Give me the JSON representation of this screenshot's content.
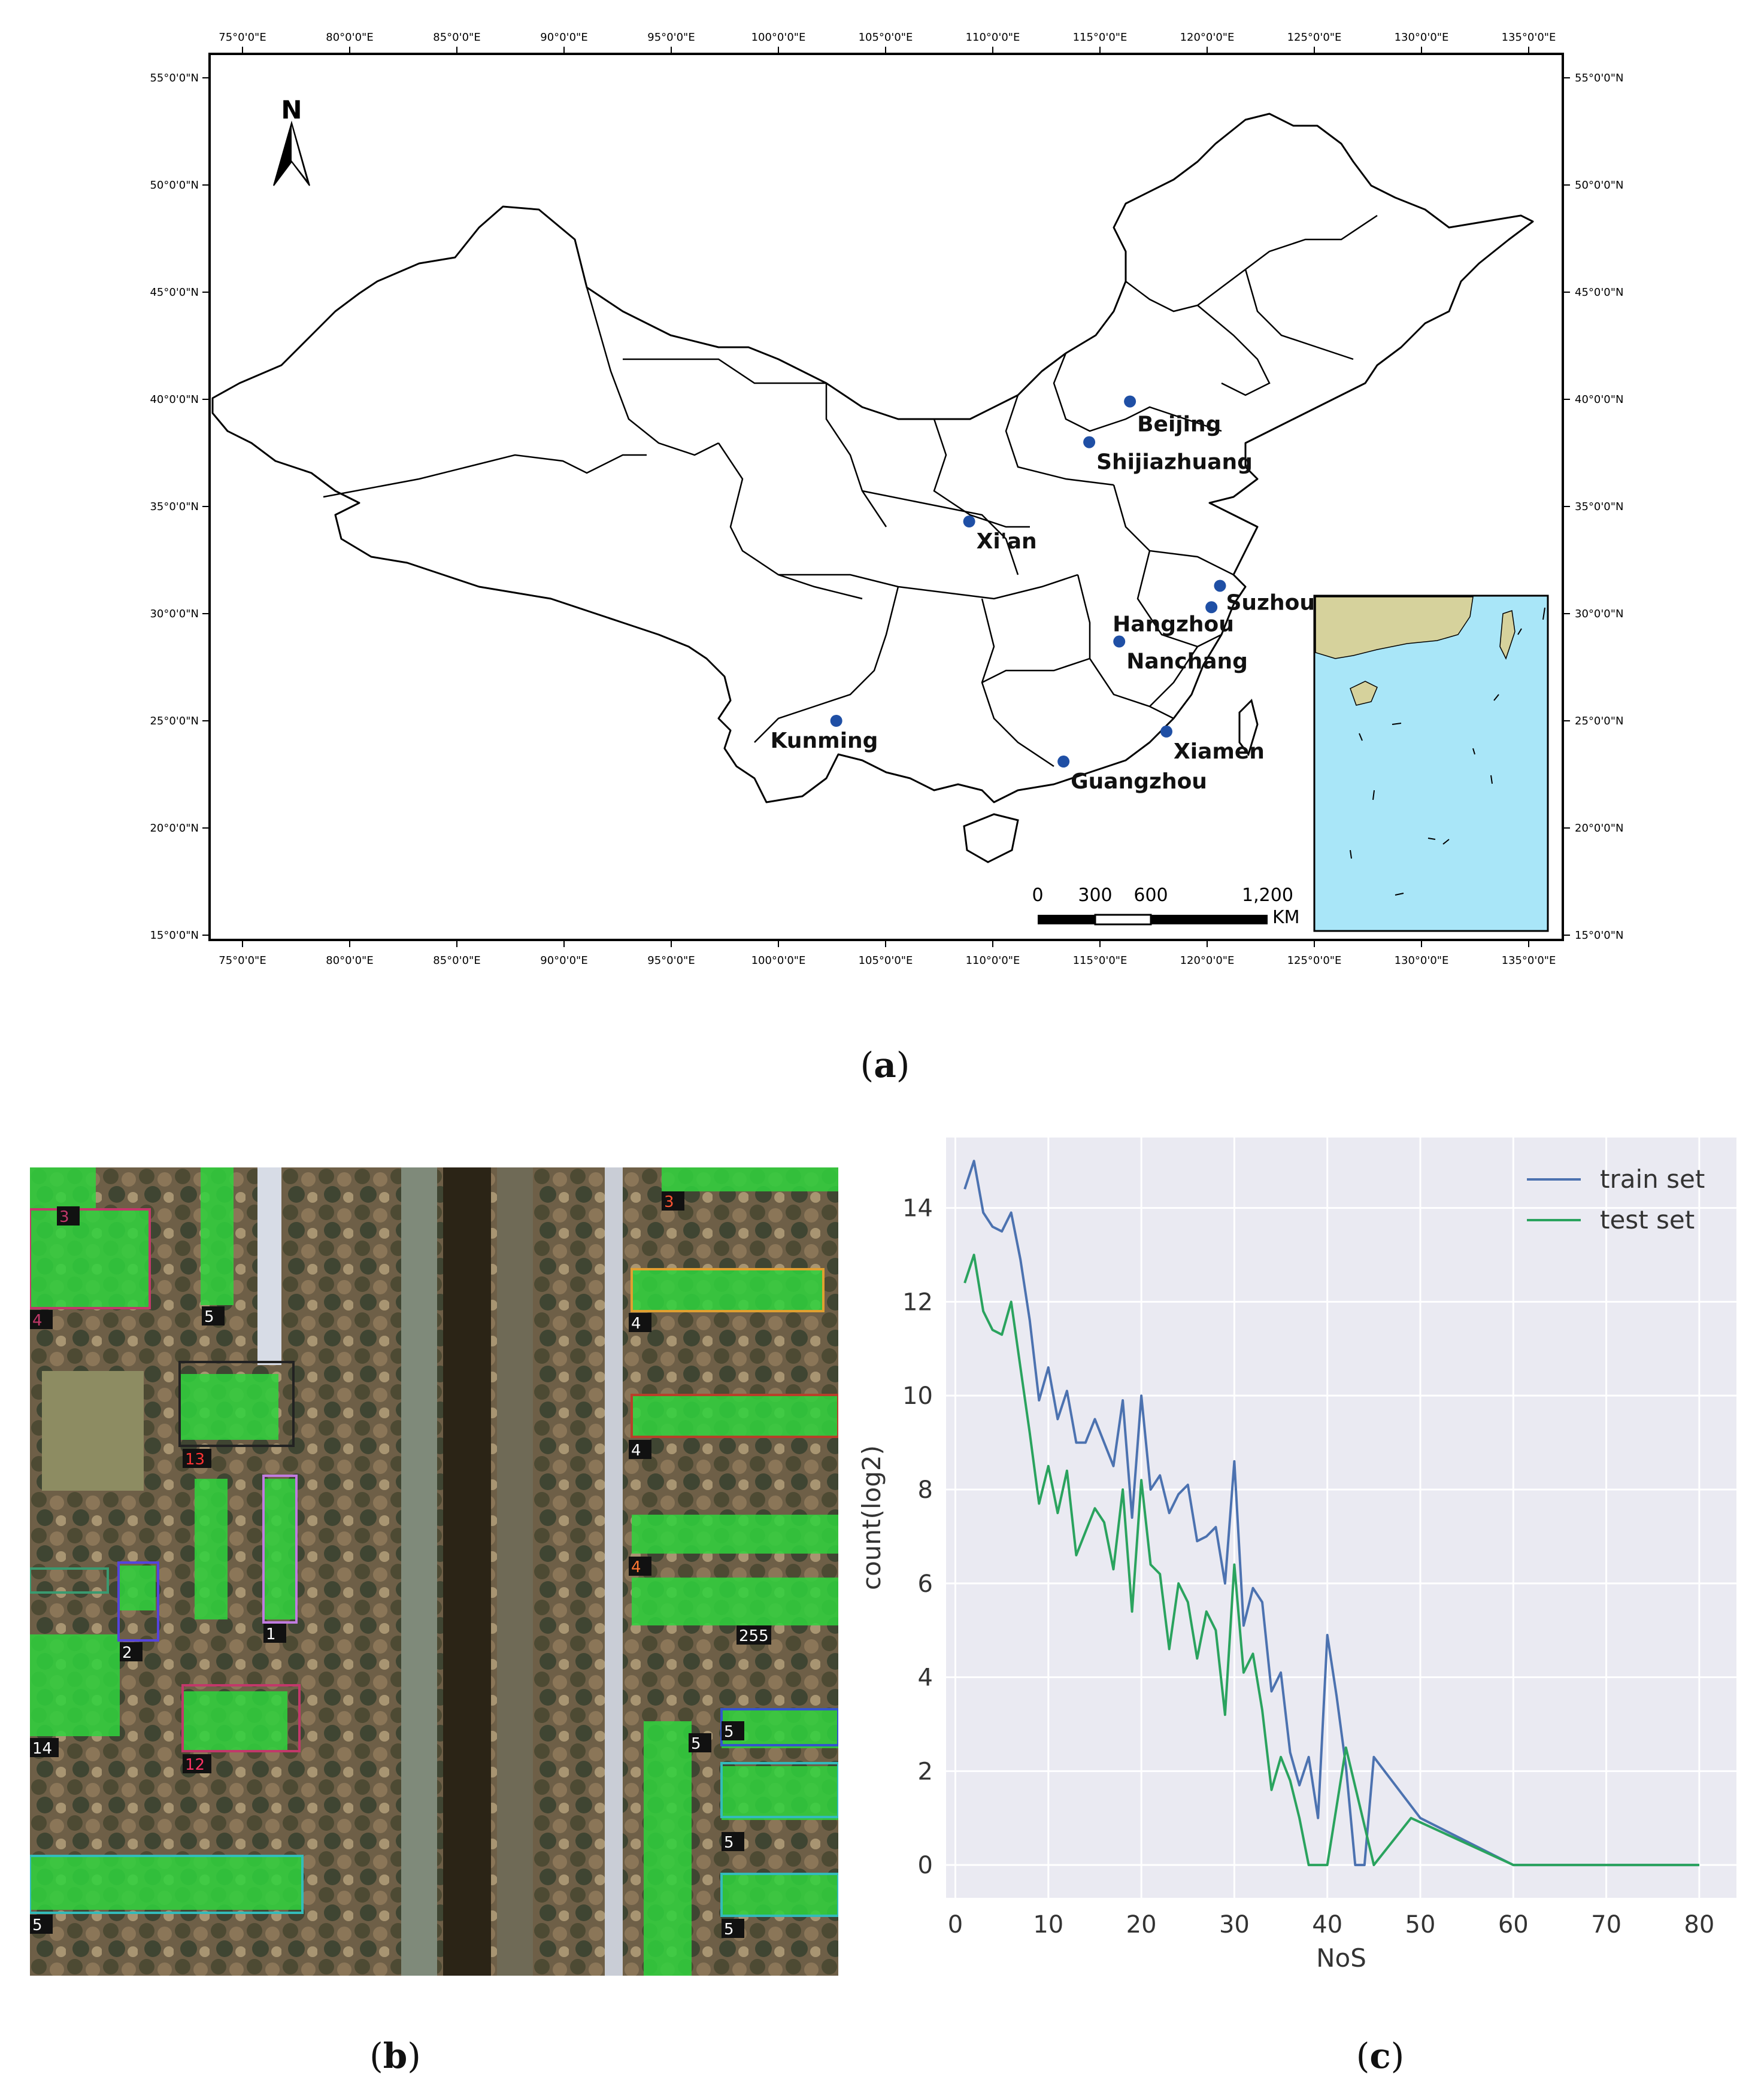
{
  "figure_a": {
    "lon_ticks": [
      "75°0'0\"E",
      "80°0'0\"E",
      "85°0'0\"E",
      "90°0'0\"E",
      "95°0'0\"E",
      "100°0'0\"E",
      "105°0'0\"E",
      "110°0'0\"E",
      "115°0'0\"E",
      "120°0'0\"E",
      "125°0'0\"E",
      "130°0'0\"E",
      "135°0'0\"E"
    ],
    "lat_ticks": [
      "55°0'0\"N",
      "50°0'0\"N",
      "45°0'0\"N",
      "40°0'0\"N",
      "35°0'0\"N",
      "30°0'0\"N",
      "25°0'0\"N",
      "20°0'0\"N",
      "15°0'0\"N"
    ],
    "north_label": "N",
    "cities": [
      {
        "name": "Beijing",
        "lon": 116.4,
        "lat": 39.9
      },
      {
        "name": "Shijiazhuang",
        "lon": 114.5,
        "lat": 38.0
      },
      {
        "name": "Xi'an",
        "lon": 108.9,
        "lat": 34.3
      },
      {
        "name": "Suzhou",
        "lon": 120.6,
        "lat": 31.3
      },
      {
        "name": "Hangzhou",
        "lon": 120.2,
        "lat": 30.3
      },
      {
        "name": "Nanchang",
        "lon": 115.9,
        "lat": 28.7
      },
      {
        "name": "Kunming",
        "lon": 102.7,
        "lat": 25.0
      },
      {
        "name": "Xiamen",
        "lon": 118.1,
        "lat": 24.5
      },
      {
        "name": "Guangzhou",
        "lon": 113.3,
        "lat": 23.1
      }
    ],
    "scale_bar": {
      "labels": [
        "0",
        "300",
        "600",
        "1,200"
      ],
      "unit": "KM"
    },
    "colors": {
      "land": "#d6d29c",
      "sea": "#a9e6f8",
      "city_dot": "#1f4fa5"
    }
  },
  "figure_b": {
    "building_labels": [
      "3",
      "5",
      "4",
      "4",
      "13",
      "4",
      "4",
      "1",
      "2",
      "14",
      "12",
      "255",
      "5",
      "5",
      "5",
      "5",
      "5",
      "3"
    ]
  },
  "chart_data": {
    "type": "line",
    "xlabel": "NoS",
    "ylabel": "count(log2)",
    "xlim": [
      -1,
      84
    ],
    "ylim": [
      -0.7,
      15.5
    ],
    "xticks": [
      0,
      10,
      20,
      30,
      40,
      50,
      60,
      70,
      80
    ],
    "yticks": [
      0,
      2,
      4,
      6,
      8,
      10,
      12,
      14
    ],
    "grid": true,
    "legend_position": "top-right",
    "background": "#eaeaf2",
    "series": [
      {
        "name": "train set",
        "color": "#4c72b0",
        "x": [
          1,
          2,
          3,
          4,
          5,
          6,
          7,
          8,
          9,
          10,
          11,
          12,
          13,
          14,
          15,
          16,
          17,
          18,
          19,
          20,
          21,
          22,
          23,
          24,
          25,
          26,
          27,
          28,
          29,
          30,
          31,
          32,
          33,
          34,
          35,
          36,
          37,
          38,
          39,
          40,
          41,
          42,
          43,
          44,
          45,
          50,
          60,
          80
        ],
        "y": [
          14.4,
          15.0,
          13.9,
          13.6,
          13.5,
          13.9,
          12.9,
          11.6,
          9.9,
          10.6,
          9.5,
          10.1,
          9.0,
          9.0,
          9.5,
          9.0,
          8.5,
          9.9,
          7.4,
          10.0,
          8.0,
          8.3,
          7.5,
          7.9,
          8.1,
          6.9,
          7.0,
          7.2,
          6.0,
          8.6,
          5.1,
          5.9,
          5.6,
          3.7,
          4.1,
          2.4,
          1.7,
          2.3,
          1.0,
          4.9,
          3.6,
          2.1,
          0.0,
          0.0,
          2.3,
          1.0,
          0.0,
          0.0
        ]
      },
      {
        "name": "test set",
        "color": "#2aa35e",
        "x": [
          1,
          2,
          3,
          4,
          5,
          6,
          7,
          8,
          9,
          10,
          11,
          12,
          13,
          14,
          15,
          16,
          17,
          18,
          19,
          20,
          21,
          22,
          23,
          24,
          25,
          26,
          27,
          28,
          29,
          30,
          31,
          32,
          33,
          34,
          35,
          36,
          37,
          38,
          39,
          40,
          42,
          45,
          49,
          60,
          80
        ],
        "y": [
          12.4,
          13.0,
          11.8,
          11.4,
          11.3,
          12.0,
          10.6,
          9.2,
          7.7,
          8.5,
          7.5,
          8.4,
          6.6,
          7.1,
          7.6,
          7.3,
          6.3,
          8.0,
          5.4,
          8.2,
          6.4,
          6.2,
          4.6,
          6.0,
          5.6,
          4.4,
          5.4,
          5.0,
          3.2,
          6.4,
          4.1,
          4.5,
          3.3,
          1.6,
          2.3,
          1.8,
          1.0,
          0.0,
          0.0,
          0.0,
          2.5,
          0.0,
          1.0,
          0.0,
          0.0
        ]
      }
    ]
  },
  "captions": {
    "a": "a",
    "b": "b",
    "c": "c"
  }
}
